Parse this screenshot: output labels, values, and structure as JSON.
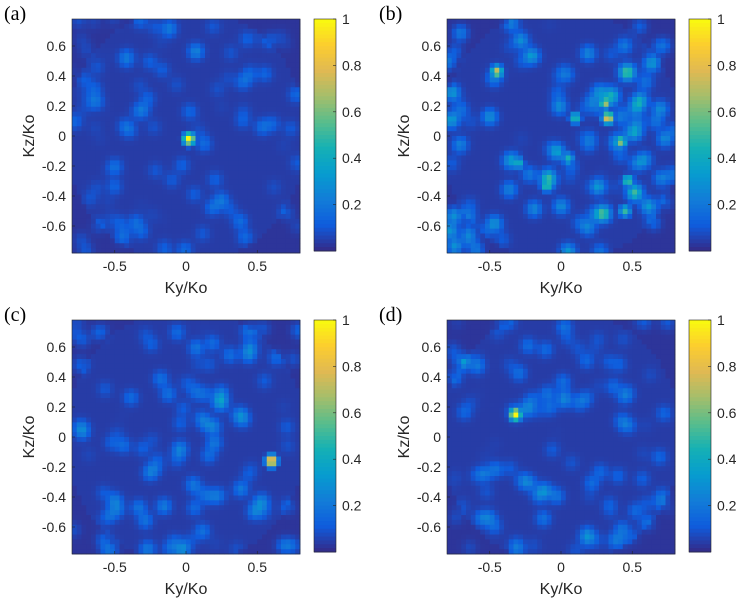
{
  "chart_data": [
    {
      "type": "heatmap",
      "panel_label": "(a)",
      "xlabel": "Ky/Ko",
      "ylabel": "Kz/Ko",
      "xlim": [
        -0.8,
        0.8
      ],
      "ylim": [
        -0.78,
        0.78
      ],
      "x_ticks": [
        "-0.5",
        "0",
        "0.5"
      ],
      "y_ticks": [
        "0.6",
        "0.4",
        "0.2",
        "0",
        "-0.2",
        "-0.4",
        "-0.6"
      ],
      "colorbar_ticks": [
        "1",
        "0.8",
        "0.6",
        "0.4",
        "0.2"
      ],
      "clim": [
        0,
        1
      ],
      "background_level": 0.12,
      "peaks": [
        {
          "ky": 0.02,
          "kz": -0.02,
          "value": 1.0
        }
      ]
    },
    {
      "type": "heatmap",
      "panel_label": "(b)",
      "xlabel": "Ky/Ko",
      "ylabel": "Kz/Ko",
      "xlim": [
        -0.8,
        0.8
      ],
      "ylim": [
        -0.78,
        0.78
      ],
      "x_ticks": [
        "-0.5",
        "0",
        "0.5"
      ],
      "y_ticks": [
        "0.6",
        "0.4",
        "0.2",
        "0",
        "-0.2",
        "-0.4",
        "-0.6"
      ],
      "colorbar_ticks": [
        "1",
        "0.8",
        "0.6",
        "0.4",
        "0.2"
      ],
      "clim": [
        0,
        1
      ],
      "background_level": 0.3,
      "peaks": [
        {
          "ky": -0.45,
          "kz": 0.43,
          "value": 0.75
        },
        {
          "ky": 0.31,
          "kz": 0.22,
          "value": 0.7
        },
        {
          "ky": 0.33,
          "kz": 0.12,
          "value": 0.85
        },
        {
          "ky": 0.42,
          "kz": -0.04,
          "value": 0.65
        },
        {
          "ky": 0.47,
          "kz": -0.3,
          "value": 0.55
        },
        {
          "ky": 0.45,
          "kz": -0.5,
          "value": 0.5
        },
        {
          "ky": -0.1,
          "kz": -0.33,
          "value": 0.55
        },
        {
          "ky": 0.1,
          "kz": 0.12,
          "value": 0.5
        },
        {
          "ky": -0.3,
          "kz": -0.18,
          "value": 0.45
        },
        {
          "ky": 0.05,
          "kz": -0.15,
          "value": 0.45
        }
      ]
    },
    {
      "type": "heatmap",
      "panel_label": "(c)",
      "xlabel": "Ky/Ko",
      "ylabel": "Kz/Ko",
      "xlim": [
        -0.8,
        0.8
      ],
      "ylim": [
        -0.78,
        0.78
      ],
      "x_ticks": [
        "-0.5",
        "0",
        "0.5"
      ],
      "y_ticks": [
        "0.6",
        "0.4",
        "0.2",
        "0",
        "-0.2",
        "-0.4",
        "-0.6"
      ],
      "colorbar_ticks": [
        "1",
        "0.8",
        "0.6",
        "0.4",
        "0.2"
      ],
      "clim": [
        0,
        1
      ],
      "background_level": 0.18,
      "peaks": [
        {
          "ky": 0.6,
          "kz": -0.16,
          "value": 1.0
        }
      ]
    },
    {
      "type": "heatmap",
      "panel_label": "(d)",
      "xlabel": "Ky/Ko",
      "ylabel": "Kz/Ko",
      "xlim": [
        -0.8,
        0.8
      ],
      "ylim": [
        -0.78,
        0.78
      ],
      "x_ticks": [
        "-0.5",
        "0",
        "0.5"
      ],
      "y_ticks": [
        "0.6",
        "0.4",
        "0.2",
        "0",
        "-0.2",
        "-0.4",
        "-0.6"
      ],
      "colorbar_ticks": [
        "1",
        "0.8",
        "0.6",
        "0.4",
        "0.2"
      ],
      "clim": [
        0,
        1
      ],
      "background_level": 0.15,
      "peaks": [
        {
          "ky": -0.32,
          "kz": 0.15,
          "value": 1.0
        }
      ]
    }
  ]
}
